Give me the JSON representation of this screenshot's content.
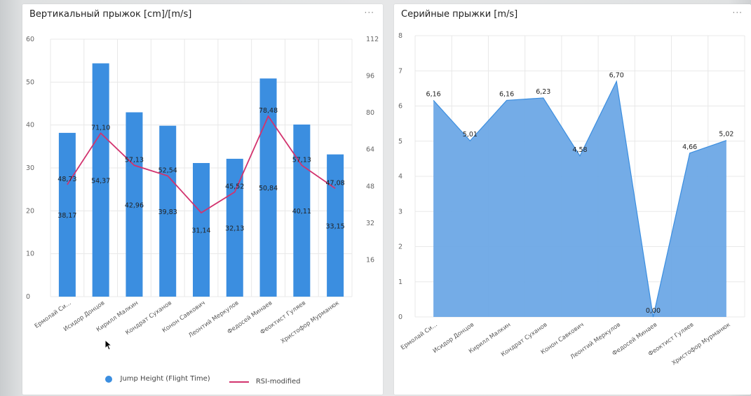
{
  "colors": {
    "bar": "#3b8ee0",
    "line": "#d2336e",
    "area": "#6da8e6",
    "areaStroke": "#3b8ee0",
    "grid": "#e8e8e8"
  },
  "left_panel": {
    "title": "Вертикальный прыжок [cm]/[m/s]",
    "menu": "···",
    "legend": {
      "bar_label": "Jump Height (Flight Time)",
      "line_label": "RSI-modified"
    }
  },
  "right_panel": {
    "title": "Серийные прыжки [m/s]",
    "menu": "···"
  },
  "chart_data": [
    {
      "type": "bar",
      "title": "Вертикальный прыжок [cm]/[m/s]",
      "categories": [
        "Ермолай Си…",
        "Исидор Донцов",
        "Кирилл Малкин",
        "Кондрат Суханов",
        "Конон Савкович",
        "Леонтий Меркулов",
        "Федосей Минаев",
        "Феоктист Гуляев",
        "Христофор Мурманюк"
      ],
      "series": [
        {
          "name": "Jump Height (Flight Time)",
          "type": "bar",
          "axis": "left",
          "values": [
            38.17,
            54.37,
            42.96,
            39.83,
            31.14,
            32.13,
            50.84,
            40.11,
            33.15
          ],
          "labels": [
            "38,17",
            "54,37",
            "42,96",
            "39,83",
            "31,14",
            "32,13",
            "50,84",
            "40,11",
            "33,15"
          ]
        },
        {
          "name": "RSI-modified",
          "type": "line",
          "axis": "right",
          "values": [
            48.73,
            71.1,
            57.13,
            52.54,
            36.5,
            45.52,
            78.48,
            57.13,
            47.08
          ],
          "labels": [
            "48,73",
            "71,10",
            "57,13",
            "52,54",
            "",
            "45,52",
            "78,48",
            "57,13",
            "47,08"
          ]
        }
      ],
      "y_left": {
        "min": 0,
        "max": 60,
        "ticks": [
          0,
          10,
          20,
          30,
          40,
          50,
          60
        ],
        "tick_labels": [
          "0",
          "10",
          "20",
          "30",
          "40",
          "50",
          "60"
        ]
      },
      "y_right": {
        "min": 0,
        "max": 112,
        "ticks": [
          16,
          32,
          48,
          64,
          80,
          96,
          112
        ],
        "tick_labels": [
          "16",
          "32",
          "48",
          "64",
          "80",
          "96",
          "112"
        ]
      },
      "legend": "bottom",
      "grid": true
    },
    {
      "type": "area",
      "title": "Серийные прыжки [m/s]",
      "categories": [
        "Ермолай Си…",
        "Исидор Донцов",
        "Кирилл Малкин",
        "Кондрат Суханов",
        "Конон Савкович",
        "Леонтий Меркулов",
        "Федосей Минаев",
        "Феоктист Гуляев",
        "Христофор Мурманюк"
      ],
      "values": [
        6.16,
        5.01,
        6.16,
        6.23,
        4.58,
        6.7,
        0.0,
        4.66,
        5.02
      ],
      "labels": [
        "6,16",
        "5,01",
        "6,16",
        "6,23",
        "4,58",
        "6,70",
        "0,00",
        "4,66",
        "5,02"
      ],
      "ylim": [
        0,
        8
      ],
      "ticks": [
        0,
        1,
        2,
        3,
        4,
        5,
        6,
        7,
        8
      ],
      "tick_labels": [
        "0",
        "1",
        "2",
        "3",
        "4",
        "5",
        "6",
        "7",
        "8"
      ],
      "grid": true
    }
  ]
}
